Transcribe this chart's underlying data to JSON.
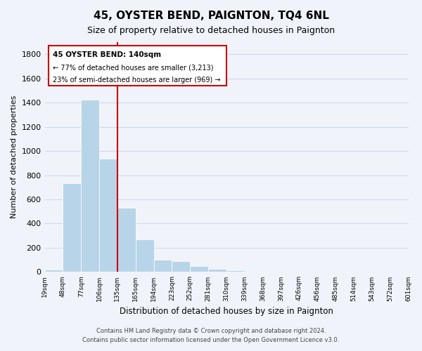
{
  "title": "45, OYSTER BEND, PAIGNTON, TQ4 6NL",
  "subtitle": "Size of property relative to detached houses in Paignton",
  "xlabel": "Distribution of detached houses by size in Paignton",
  "ylabel": "Number of detached properties",
  "bar_values": [
    20,
    735,
    1425,
    935,
    530,
    270,
    100,
    90,
    50,
    28,
    15,
    8,
    3,
    2,
    1,
    1,
    0,
    0,
    0,
    0
  ],
  "bin_labels": [
    "19sqm",
    "48sqm",
    "77sqm",
    "106sqm",
    "135sqm",
    "165sqm",
    "194sqm",
    "223sqm",
    "252sqm",
    "281sqm",
    "310sqm",
    "339sqm",
    "368sqm",
    "397sqm",
    "426sqm",
    "456sqm",
    "485sqm",
    "514sqm",
    "543sqm",
    "572sqm",
    "601sqm"
  ],
  "bar_color": "#b8d4e8",
  "bar_edge_color": "#ffffff",
  "vline_color": "#cc0000",
  "annotation_text_line1": "45 OYSTER BEND: 140sqm",
  "annotation_text_line2": "← 77% of detached houses are smaller (3,213)",
  "annotation_text_line3": "23% of semi-detached houses are larger (969) →",
  "annotation_box_edge": "#cc0000",
  "ylim": [
    0,
    1900
  ],
  "yticks": [
    0,
    200,
    400,
    600,
    800,
    1000,
    1200,
    1400,
    1600,
    1800
  ],
  "footer_line1": "Contains HM Land Registry data © Crown copyright and database right 2024.",
  "footer_line2": "Contains public sector information licensed under the Open Government Licence v3.0.",
  "grid_color": "#d0d8e8",
  "background_color": "#f0f4fa"
}
